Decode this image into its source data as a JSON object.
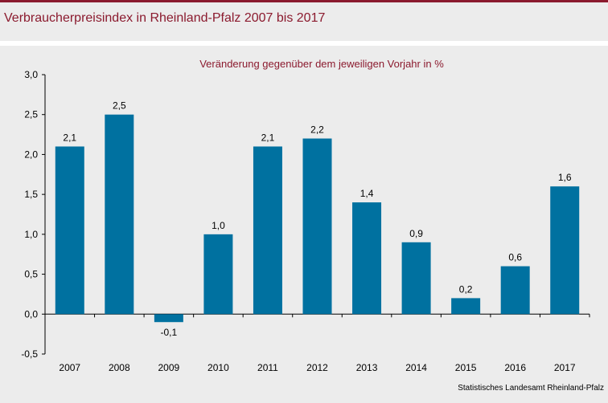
{
  "title": "Verbraucherpreisindex in Rheinland-Pfalz 2007 bis 2017",
  "colors": {
    "bar": "#0071a0",
    "accent": "#8b1a2e"
  },
  "source": "Statistisches Landesamt Rheinland-Pfalz",
  "chart_data": {
    "type": "bar",
    "title": "Veränderung gegenüber dem jeweiligen Vorjahr in %",
    "categories": [
      "2007",
      "2008",
      "2009",
      "2010",
      "2011",
      "2012",
      "2013",
      "2014",
      "2015",
      "2016",
      "2017"
    ],
    "values": [
      2.1,
      2.5,
      -0.1,
      1.0,
      2.1,
      2.2,
      1.4,
      0.9,
      0.2,
      0.6,
      1.6
    ],
    "data_labels": [
      "2,1",
      "2,5",
      "-0,1",
      "1,0",
      "2,1",
      "2,2",
      "1,4",
      "0,9",
      "0,2",
      "0,6",
      "1,6"
    ],
    "ylim": [
      -0.5,
      3.0
    ],
    "yticks": [
      -0.5,
      0.0,
      0.5,
      1.0,
      1.5,
      2.0,
      2.5,
      3.0
    ],
    "ytick_labels": [
      "-0,5",
      "0,0",
      "0,5",
      "1,0",
      "1,5",
      "2,0",
      "2,5",
      "3,0"
    ],
    "grid": false,
    "legend": "none"
  }
}
